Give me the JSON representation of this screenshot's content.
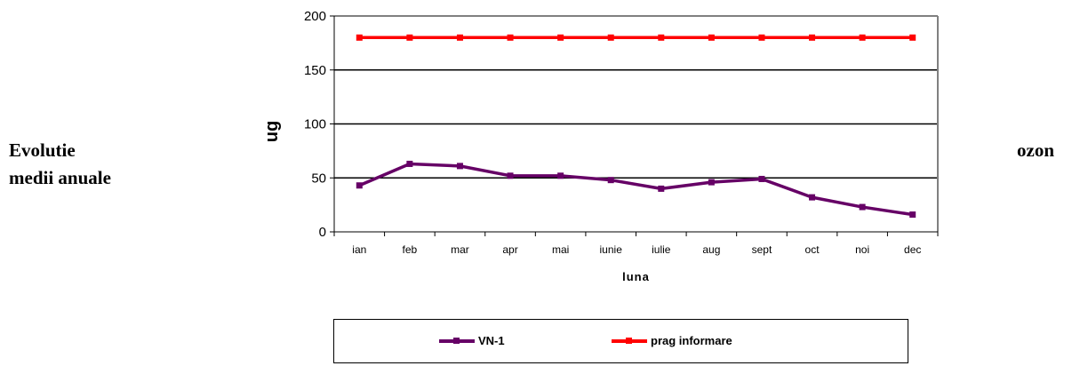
{
  "side_text": {
    "left_line1": "Evolutie",
    "left_line2": "medii anuale",
    "right": "ozon"
  },
  "chart_data": {
    "type": "line",
    "title": "",
    "xlabel": "luna",
    "ylabel": "ug",
    "ylim": [
      0,
      200
    ],
    "yticks": [
      0,
      50,
      100,
      150,
      200
    ],
    "categories": [
      "ian",
      "feb",
      "mar",
      "apr",
      "mai",
      "iunie",
      "iulie",
      "aug",
      "sept",
      "oct",
      "noi",
      "dec"
    ],
    "grid": true,
    "legend_position": "bottom",
    "series": [
      {
        "name": "VN-1",
        "color": "#660066",
        "values": [
          43,
          63,
          61,
          52,
          52,
          48,
          40,
          46,
          49,
          32,
          23,
          16
        ]
      },
      {
        "name": "prag informare",
        "color": "#ff0000",
        "values": [
          180,
          180,
          180,
          180,
          180,
          180,
          180,
          180,
          180,
          180,
          180,
          180
        ]
      }
    ]
  }
}
